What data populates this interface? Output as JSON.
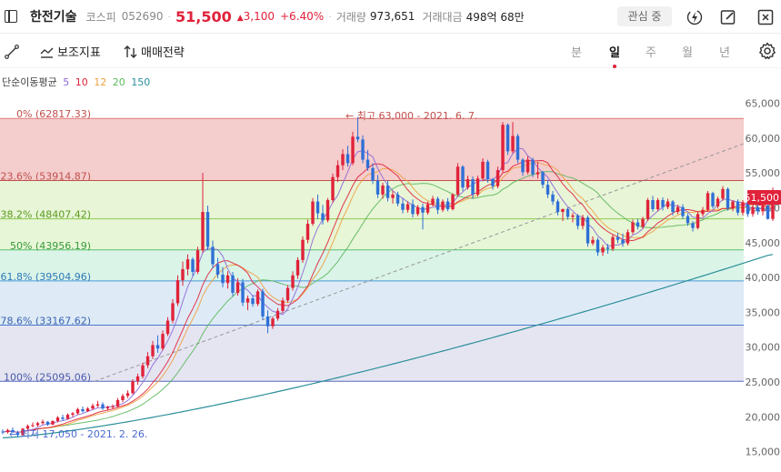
{
  "header": {
    "name": "한전기술",
    "market": "코스피",
    "code": "052690",
    "price": "51,500",
    "change": "3,100",
    "change_pct": "+6.40%",
    "volume_label": "거래량",
    "volume": "973,651",
    "amount_label": "거래대금",
    "amount": "498억 68만",
    "favorite_label": "관심 중"
  },
  "toolbar": {
    "indicator_label": "보조지표",
    "strategy_label": "매매전략",
    "periods": [
      "분",
      "일",
      "주",
      "월",
      "년"
    ],
    "active_period": "일"
  },
  "ma_legend": {
    "title": "단순이동평균",
    "periods": [
      {
        "label": "5",
        "color": "#8e68d8"
      },
      {
        "label": "10",
        "color": "#e0223a"
      },
      {
        "label": "12",
        "color": "#f0a040"
      },
      {
        "label": "20",
        "color": "#5cb85c"
      },
      {
        "label": "150",
        "color": "#2b8f9a"
      }
    ]
  },
  "chart_data": {
    "type": "candlestick",
    "y_ticks": [
      "65,000",
      "60,000",
      "55,000",
      "50,000",
      "45,000",
      "40,000",
      "35,000",
      "30,000",
      "25,000",
      "20,000",
      "15,000"
    ],
    "current_price_label": "51,500",
    "current_price": 51500,
    "fib_levels": [
      {
        "label": "0% (62817.33)",
        "value": 62817.33,
        "band": "#f2c4c4",
        "line": "#e07a7a",
        "text_color": "#c0504d"
      },
      {
        "label": "23.6% (53914.87)",
        "value": 53914.87,
        "band": "#e4f3d0",
        "line": "#c0504d",
        "text_color": "#c0504d"
      },
      {
        "label": "38.2% (48407.42)",
        "value": 48407.42,
        "band": "#e3f5cf",
        "line": "#8cc850",
        "text_color": "#5a9a1f"
      },
      {
        "label": "50% (43956.19)",
        "value": 43956.19,
        "band": "#d4f2e4",
        "line": "#5cc070",
        "text_color": "#3a9a3a"
      },
      {
        "label": "61.8% (39504.96)",
        "value": 39504.96,
        "band": "#d8e8f5",
        "line": "#4a9ad8",
        "text_color": "#2e7ab8"
      },
      {
        "label": "78.6% (33167.62)",
        "value": 33167.62,
        "band": "#e0e0f0",
        "line": "#4a78c8",
        "text_color": "#3a64b0"
      },
      {
        "label": "100% (25095.06)",
        "value": 25095.06,
        "band": null,
        "line": "#5a6cc0",
        "text_color": "#4a5aa8"
      }
    ],
    "high_annotation": "최고 63,000 - 2021. 6. 7.",
    "low_annotation": "최저 17,050 - 2021. 2. 26.",
    "candles": [
      [
        17900,
        18200,
        17500,
        17800
      ],
      [
        17800,
        18300,
        17600,
        18100
      ],
      [
        18100,
        18500,
        17700,
        17800
      ],
      [
        17700,
        18000,
        17050,
        17400
      ],
      [
        17400,
        18400,
        17300,
        18300
      ],
      [
        18300,
        18900,
        18100,
        18700
      ],
      [
        18700,
        19200,
        18500,
        18800
      ],
      [
        18800,
        19300,
        18600,
        19100
      ],
      [
        19100,
        19600,
        18900,
        19300
      ],
      [
        19300,
        19400,
        18700,
        18900
      ],
      [
        18900,
        19500,
        18800,
        19400
      ],
      [
        19400,
        20100,
        19200,
        19900
      ],
      [
        19900,
        20300,
        19500,
        19700
      ],
      [
        19700,
        20500,
        19600,
        20300
      ],
      [
        20300,
        20700,
        20000,
        20500
      ],
      [
        20500,
        21300,
        20300,
        21100
      ],
      [
        21100,
        21500,
        20600,
        20800
      ],
      [
        20800,
        21400,
        20700,
        21200
      ],
      [
        21200,
        21900,
        21000,
        21600
      ],
      [
        21600,
        22300,
        21400,
        21800
      ],
      [
        21800,
        22100,
        21000,
        21200
      ],
      [
        21200,
        21600,
        20900,
        21400
      ],
      [
        21400,
        21800,
        21100,
        21500
      ],
      [
        21500,
        22700,
        21300,
        22400
      ],
      [
        22400,
        23300,
        22100,
        23000
      ],
      [
        23000,
        23800,
        22700,
        23400
      ],
      [
        23400,
        25400,
        23200,
        25100
      ],
      [
        25100,
        26200,
        24600,
        25800
      ],
      [
        25800,
        27800,
        25500,
        27400
      ],
      [
        27400,
        29300,
        27000,
        28700
      ],
      [
        28700,
        30900,
        28300,
        30300
      ],
      [
        30300,
        31700,
        29200,
        29800
      ],
      [
        29800,
        32400,
        29500,
        31900
      ],
      [
        31900,
        34300,
        31600,
        33800
      ],
      [
        33800,
        36900,
        33400,
        36300
      ],
      [
        36300,
        40300,
        35900,
        39600
      ],
      [
        39600,
        42300,
        38800,
        41200
      ],
      [
        41200,
        43300,
        40300,
        42600
      ],
      [
        42600,
        42900,
        40200,
        40800
      ],
      [
        40800,
        44400,
        40500,
        43900
      ],
      [
        43900,
        55000,
        43500,
        49400
      ],
      [
        49400,
        50300,
        43900,
        44400
      ],
      [
        44400,
        45300,
        41300,
        41900
      ],
      [
        41900,
        42800,
        39900,
        40400
      ],
      [
        40400,
        41500,
        38600,
        39200
      ],
      [
        39200,
        40900,
        38400,
        40300
      ],
      [
        40300,
        40800,
        37300,
        37800
      ],
      [
        37800,
        39900,
        37400,
        39300
      ],
      [
        39300,
        39800,
        35900,
        36400
      ],
      [
        36400,
        37400,
        35300,
        37000
      ],
      [
        37000,
        37500,
        35800,
        36200
      ],
      [
        36200,
        38300,
        35900,
        38000
      ],
      [
        38000,
        38400,
        33900,
        34400
      ],
      [
        34400,
        35300,
        32000,
        33000
      ],
      [
        33000,
        34400,
        32600,
        34100
      ],
      [
        34100,
        35600,
        33800,
        35200
      ],
      [
        35200,
        37100,
        34900,
        36700
      ],
      [
        36700,
        38900,
        36400,
        38500
      ],
      [
        38500,
        40900,
        38100,
        40300
      ],
      [
        40300,
        42900,
        39800,
        42500
      ],
      [
        42500,
        45900,
        42100,
        45400
      ],
      [
        45400,
        48300,
        44900,
        47700
      ],
      [
        47700,
        51400,
        47400,
        50900
      ],
      [
        50900,
        51900,
        48400,
        49200
      ],
      [
        49200,
        50400,
        47600,
        48200
      ],
      [
        48200,
        51400,
        47900,
        51100
      ],
      [
        51100,
        54900,
        50700,
        54400
      ],
      [
        54400,
        56800,
        53700,
        56100
      ],
      [
        56100,
        58400,
        55400,
        57700
      ],
      [
        57700,
        58900,
        55900,
        56400
      ],
      [
        56400,
        60900,
        56100,
        60200
      ],
      [
        60200,
        63000,
        59400,
        59800
      ],
      [
        59800,
        60400,
        56400,
        56900
      ],
      [
        56900,
        58300,
        55300,
        55700
      ],
      [
        55700,
        56400,
        53400,
        53900
      ],
      [
        53900,
        54700,
        51400,
        51900
      ],
      [
        51900,
        53600,
        51300,
        53200
      ],
      [
        53200,
        53900,
        50900,
        51400
      ],
      [
        51400,
        52400,
        50600,
        51900
      ],
      [
        51900,
        52300,
        50200,
        50600
      ],
      [
        50600,
        51400,
        49200,
        49700
      ],
      [
        49700,
        50900,
        49300,
        50500
      ],
      [
        50500,
        51200,
        48600,
        49100
      ],
      [
        49100,
        50400,
        48800,
        50100
      ],
      [
        50100,
        50600,
        46900,
        49300
      ],
      [
        49300,
        50900,
        49000,
        50500
      ],
      [
        50500,
        51700,
        50200,
        51300
      ],
      [
        51300,
        51600,
        49100,
        49700
      ],
      [
        49700,
        51200,
        49400,
        50900
      ],
      [
        50900,
        51400,
        49500,
        49800
      ],
      [
        49800,
        52100,
        49600,
        51900
      ],
      [
        51900,
        56400,
        51600,
        55900
      ],
      [
        55900,
        56100,
        52400,
        52900
      ],
      [
        52900,
        54600,
        52600,
        54100
      ],
      [
        54100,
        54500,
        51300,
        51900
      ],
      [
        51900,
        54600,
        51600,
        54200
      ],
      [
        54200,
        57100,
        53800,
        56600
      ],
      [
        56600,
        56900,
        53600,
        54100
      ],
      [
        54100,
        54300,
        52600,
        53100
      ],
      [
        53100,
        55900,
        52800,
        55400
      ],
      [
        55400,
        62300,
        55100,
        61900
      ],
      [
        61900,
        62100,
        57600,
        58100
      ],
      [
        58100,
        62300,
        57800,
        60300
      ],
      [
        60300,
        60600,
        56400,
        56900
      ],
      [
        56900,
        57100,
        54600,
        55100
      ],
      [
        55100,
        57400,
        54800,
        56900
      ],
      [
        56900,
        57200,
        54400,
        54800
      ],
      [
        54800,
        56600,
        54200,
        55100
      ],
      [
        55100,
        55300,
        52800,
        53300
      ],
      [
        53300,
        54000,
        51400,
        51900
      ],
      [
        51900,
        52400,
        50400,
        50900
      ],
      [
        50900,
        51200,
        48900,
        49400
      ],
      [
        49400,
        49900,
        48100,
        49800
      ],
      [
        49800,
        50000,
        48300,
        48700
      ],
      [
        48700,
        49300,
        47900,
        48900
      ],
      [
        48900,
        49100,
        46900,
        47400
      ],
      [
        47400,
        49000,
        46900,
        48600
      ],
      [
        48600,
        48900,
        44400,
        44900
      ],
      [
        44900,
        45900,
        44600,
        45400
      ],
      [
        45400,
        45700,
        43100,
        43600
      ],
      [
        43600,
        44700,
        43100,
        44300
      ],
      [
        44300,
        44800,
        43400,
        44100
      ],
      [
        44100,
        46200,
        43800,
        45800
      ],
      [
        45800,
        46400,
        44900,
        45400
      ],
      [
        45400,
        46300,
        44400,
        44900
      ],
      [
        44900,
        46900,
        44600,
        46500
      ],
      [
        46500,
        48300,
        46200,
        47900
      ],
      [
        47900,
        48400,
        46900,
        47300
      ],
      [
        47300,
        48700,
        47000,
        48400
      ],
      [
        48400,
        51400,
        48100,
        51100
      ],
      [
        51100,
        51700,
        49400,
        49800
      ],
      [
        49800,
        51400,
        49500,
        51100
      ],
      [
        51100,
        51500,
        49600,
        50100
      ],
      [
        50100,
        51300,
        49800,
        50900
      ],
      [
        50900,
        51100,
        48900,
        49400
      ],
      [
        49400,
        50400,
        49100,
        50100
      ],
      [
        50100,
        50500,
        48400,
        48800
      ],
      [
        48800,
        49200,
        47400,
        47800
      ],
      [
        47800,
        48100,
        46600,
        47100
      ],
      [
        47100,
        49400,
        46900,
        49100
      ],
      [
        49100,
        50100,
        48700,
        49700
      ],
      [
        49700,
        52400,
        49400,
        52100
      ],
      [
        52100,
        52300,
        49900,
        50200
      ],
      [
        50200,
        51600,
        49900,
        51300
      ],
      [
        51300,
        53100,
        51000,
        52700
      ],
      [
        52700,
        52900,
        49600,
        49900
      ],
      [
        49900,
        51100,
        49500,
        50900
      ],
      [
        50900,
        51200,
        48900,
        49300
      ],
      [
        49300,
        51100,
        48900,
        50800
      ],
      [
        50800,
        51100,
        48700,
        49100
      ],
      [
        49100,
        50400,
        48700,
        50100
      ],
      [
        50100,
        50400,
        49000,
        49500
      ],
      [
        49500,
        50600,
        48900,
        50300
      ],
      [
        50300,
        50700,
        48300,
        48400
      ],
      [
        48400,
        52900,
        48100,
        51500
      ]
    ]
  }
}
